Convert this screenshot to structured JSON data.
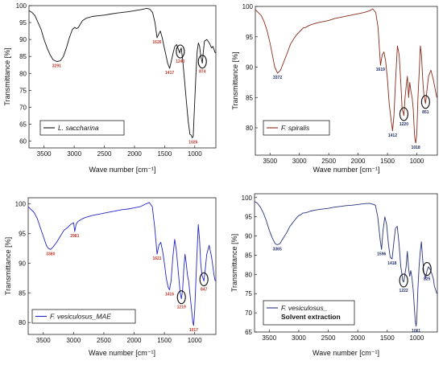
{
  "chart_data": [
    {
      "type": "line",
      "xlabel": "Wave number [cm⁻¹]",
      "ylabel": "Transmittance [%]",
      "xlim": [
        3750,
        650
      ],
      "ylim": [
        58,
        100
      ],
      "x_ticks": [
        "3500",
        "3000",
        "2500",
        "2000",
        "1500",
        "1000"
      ],
      "y_ticks": [
        "60",
        "65",
        "70",
        "75",
        "80",
        "85",
        "90",
        "95",
        "100"
      ],
      "legend": [
        "L. saccharina"
      ],
      "legend_sub": "",
      "color": "#111111",
      "annotation_color": "#c0392b",
      "series": [
        {
          "name": "L. saccharina",
          "x": [
            3750,
            3700,
            3650,
            3600,
            3550,
            3500,
            3450,
            3400,
            3350,
            3291,
            3230,
            3180,
            3130,
            3080,
            3030,
            2990,
            2960,
            2930,
            2900,
            2860,
            2800,
            2700,
            2600,
            2500,
            2400,
            2300,
            2200,
            2100,
            2000,
            1900,
            1800,
            1750,
            1700,
            1660,
            1626,
            1600,
            1570,
            1540,
            1510,
            1480,
            1450,
            1417,
            1390,
            1360,
            1330,
            1300,
            1270,
            1250,
            1240,
            1225,
            1200,
            1170,
            1140,
            1110,
            1080,
            1060,
            1040,
            1026,
            1000,
            980,
            960,
            940,
            920,
            900,
            874,
            860,
            840,
            800,
            760,
            720,
            700,
            680,
            660
          ],
          "y": [
            98.5,
            98,
            97,
            95,
            93,
            90,
            87.5,
            85.5,
            84,
            83.5,
            83.7,
            85,
            87.5,
            90.5,
            93,
            93.6,
            93.2,
            93.6,
            94.5,
            95.6,
            96.3,
            96.8,
            97,
            97.2,
            97.5,
            97.8,
            98,
            98.2,
            98.5,
            98.8,
            99.2,
            99,
            98,
            95,
            90.5,
            91.5,
            92.5,
            90.5,
            88,
            85.5,
            83,
            81.5,
            83.5,
            86,
            88,
            88.5,
            87,
            86,
            86.8,
            87.5,
            84,
            78,
            72,
            66,
            62,
            61.8,
            61,
            61.5,
            72,
            80,
            86.5,
            89,
            88,
            85,
            83,
            86,
            89.5,
            90,
            89,
            87.5,
            88,
            87,
            86
          ]
        }
      ],
      "annotations": [
        {
          "label": "3291",
          "x": 3291,
          "y": 83.5,
          "circle": false
        },
        {
          "label": "1626",
          "x": 1626,
          "y": 90.5,
          "circle": false
        },
        {
          "label": "1417",
          "x": 1417,
          "y": 81.5,
          "circle": false
        },
        {
          "label": "1240",
          "x": 1240,
          "y": 86.0,
          "circle": true
        },
        {
          "label": "874",
          "x": 874,
          "y": 83.0,
          "circle": true
        },
        {
          "label": "1026",
          "x": 1026,
          "y": 61.0,
          "circle": false
        }
      ]
    },
    {
      "type": "line",
      "xlabel": "Wave number [cm⁻¹]",
      "ylabel": "Transmittance [%]",
      "xlim": [
        3750,
        650
      ],
      "ylim": [
        75.5,
        100
      ],
      "x_ticks": [
        "3500",
        "3000",
        "2500",
        "2000",
        "1500",
        "1000"
      ],
      "y_ticks": [
        "75",
        "80",
        "85",
        "90",
        "95",
        "100"
      ],
      "legend": [
        "F. spiralis"
      ],
      "legend_sub": "",
      "color": "#8b2a1a",
      "annotation_color": "#1f2d6b",
      "series": [
        {
          "name": "F. spiralis",
          "x": [
            3750,
            3700,
            3650,
            3600,
            3550,
            3500,
            3450,
            3420,
            3372,
            3320,
            3260,
            3200,
            3150,
            3100,
            3050,
            3000,
            2960,
            2930,
            2900,
            2850,
            2800,
            2700,
            2600,
            2500,
            2400,
            2300,
            2200,
            2100,
            2000,
            1900,
            1800,
            1750,
            1700,
            1660,
            1619,
            1590,
            1560,
            1530,
            1500,
            1470,
            1440,
            1412,
            1390,
            1360,
            1330,
            1300,
            1270,
            1250,
            1230,
            1220,
            1200,
            1180,
            1160,
            1140,
            1120,
            1100,
            1080,
            1060,
            1040,
            1030,
            1018,
            1000,
            980,
            960,
            940,
            920,
            900,
            880,
            851,
            830,
            800,
            760,
            720,
            700,
            680,
            660
          ],
          "y": [
            99.5,
            99,
            98.5,
            97.5,
            96,
            94,
            91.5,
            90,
            89,
            89.5,
            91,
            92.5,
            93.8,
            94.6,
            95.3,
            95.8,
            96.2,
            96.5,
            96.5,
            96.8,
            97,
            97.3,
            97.5,
            97.7,
            98,
            98.2,
            98.4,
            98.6,
            98.8,
            99,
            99.3,
            99.6,
            99,
            96.5,
            90.3,
            92,
            92.5,
            91,
            88,
            84,
            81.5,
            79.5,
            82,
            88,
            93.5,
            92,
            87,
            83,
            82.5,
            82,
            85,
            87,
            88.5,
            85,
            87.5,
            86,
            85,
            83,
            79,
            78,
            77.5,
            79,
            85,
            89,
            93.5,
            92,
            88,
            85.5,
            84,
            86,
            88.5,
            89.5,
            88,
            87,
            86,
            85
          ]
        }
      ],
      "annotations": [
        {
          "label": "3372",
          "x": 3372,
          "y": 89.0,
          "circle": false
        },
        {
          "label": "1619",
          "x": 1619,
          "y": 90.3,
          "circle": false
        },
        {
          "label": "1412",
          "x": 1412,
          "y": 79.5,
          "circle": false
        },
        {
          "label": "1220",
          "x": 1220,
          "y": 82.0,
          "circle": true
        },
        {
          "label": "1018",
          "x": 1018,
          "y": 77.5,
          "circle": false
        },
        {
          "label": "851",
          "x": 851,
          "y": 84.0,
          "circle": true
        }
      ]
    },
    {
      "type": "line",
      "xlabel": "Wave number [cm⁻¹]",
      "ylabel": "Transmittance [%]",
      "xlim": [
        3750,
        650
      ],
      "ylim": [
        78,
        101
      ],
      "x_ticks": [
        "3500",
        "3000",
        "2500",
        "2000",
        "1500",
        "1000"
      ],
      "y_ticks": [
        "80",
        "85",
        "90",
        "95",
        "100"
      ],
      "legend": [
        "F. vesiculosus_MAE"
      ],
      "legend_sub": "",
      "color": "#2326c6",
      "annotation_color": "#c0392b",
      "series": [
        {
          "name": "F. vesiculosus_MAE",
          "x": [
            3750,
            3700,
            3650,
            3600,
            3550,
            3500,
            3450,
            3420,
            3380,
            3340,
            3280,
            3220,
            3160,
            3100,
            3050,
            3000,
            2981,
            2960,
            2930,
            2900,
            2850,
            2800,
            2700,
            2600,
            2500,
            2400,
            2300,
            2200,
            2100,
            2000,
            1900,
            1800,
            1750,
            1700,
            1660,
            1621,
            1590,
            1560,
            1530,
            1500,
            1470,
            1440,
            1416,
            1390,
            1360,
            1330,
            1300,
            1270,
            1240,
            1219,
            1200,
            1180,
            1160,
            1140,
            1120,
            1100,
            1080,
            1060,
            1040,
            1030,
            1017,
            1000,
            980,
            960,
            940,
            920,
            900,
            880,
            847,
            830,
            800,
            760,
            720,
            700,
            680,
            660
          ],
          "y": [
            99.5,
            99,
            98.5,
            97.5,
            96,
            94.5,
            93,
            92.5,
            92.3,
            92.7,
            93.5,
            94.5,
            95.5,
            96,
            96.5,
            96.8,
            95.3,
            96.5,
            97,
            97.2,
            97.5,
            97.7,
            98,
            98.2,
            98.4,
            98.6,
            98.8,
            99,
            99.1,
            99.3,
            99.5,
            100,
            100.2,
            99.5,
            96,
            91.5,
            93,
            93.5,
            92,
            90,
            87.5,
            86,
            85.5,
            87,
            91,
            94,
            92,
            88.5,
            85,
            84,
            85.5,
            89,
            91.5,
            90,
            88,
            87,
            85,
            83,
            81,
            80,
            79.5,
            82,
            87,
            92,
            96.5,
            94,
            90,
            88,
            87,
            88.5,
            91.5,
            93,
            91,
            89.5,
            88,
            87
          ]
        }
      ],
      "annotations": [
        {
          "label": "3380",
          "x": 3380,
          "y": 92.3,
          "circle": false
        },
        {
          "label": "2981",
          "x": 2981,
          "y": 95.3,
          "circle": false
        },
        {
          "label": "1621",
          "x": 1621,
          "y": 91.5,
          "circle": false
        },
        {
          "label": "1416",
          "x": 1416,
          "y": 85.5,
          "circle": false
        },
        {
          "label": "1219",
          "x": 1219,
          "y": 84.0,
          "circle": true
        },
        {
          "label": "1017",
          "x": 1017,
          "y": 79.5,
          "circle": false
        },
        {
          "label": "847",
          "x": 847,
          "y": 87.0,
          "circle": true
        }
      ]
    },
    {
      "type": "line",
      "xlabel": "Wave number [cm⁻¹]",
      "ylabel": "Transmittance [%]",
      "xlim": [
        3750,
        650
      ],
      "ylim": [
        65,
        101
      ],
      "x_ticks": [
        "3500",
        "3000",
        "2500",
        "2000",
        "1500",
        "1000"
      ],
      "y_ticks": [
        "65",
        "70",
        "75",
        "80",
        "85",
        "90",
        "95",
        "100"
      ],
      "legend": [
        "F. vesiculosus_"
      ],
      "legend_sub": "Solvent extraction",
      "color": "#28337d",
      "annotation_color": "#1f2d6b",
      "series": [
        {
          "name": "F. vesiculosus_",
          "x": [
            3750,
            3700,
            3650,
            3600,
            3550,
            3500,
            3450,
            3400,
            3365,
            3320,
            3260,
            3200,
            3150,
            3100,
            3050,
            3000,
            2960,
            2930,
            2900,
            2850,
            2800,
            2700,
            2600,
            2500,
            2400,
            2300,
            2200,
            2100,
            2000,
            1900,
            1800,
            1750,
            1700,
            1660,
            1620,
            1596,
            1570,
            1540,
            1510,
            1480,
            1450,
            1418,
            1390,
            1360,
            1330,
            1300,
            1270,
            1250,
            1240,
            1222,
            1200,
            1180,
            1160,
            1140,
            1120,
            1100,
            1080,
            1060,
            1040,
            1025,
            1011,
            1000,
            980,
            960,
            940,
            920,
            900,
            880,
            850,
            825,
            800,
            760,
            720,
            700,
            680,
            660
          ],
          "y": [
            99,
            98.5,
            97.5,
            96,
            94,
            91.5,
            89.5,
            88,
            87.7,
            88,
            89.5,
            91,
            92.5,
            93.5,
            94.5,
            95.3,
            95.6,
            96,
            96,
            96.2,
            96.5,
            96.8,
            97,
            97.2,
            97.5,
            97.7,
            97.9,
            98,
            98.2,
            98.4,
            98.5,
            98.3,
            98,
            95,
            89,
            86.5,
            91.5,
            95,
            93,
            88,
            84.5,
            84,
            88,
            92,
            92.5,
            88,
            82,
            80,
            78.5,
            78,
            80,
            82,
            86,
            82,
            79.5,
            81,
            79,
            76,
            71.5,
            68,
            66.5,
            68,
            76,
            82,
            86,
            88.5,
            84,
            80.5,
            79,
            81,
            82,
            81,
            79,
            77,
            76,
            75
          ]
        }
      ],
      "annotations": [
        {
          "label": "3365",
          "x": 3365,
          "y": 87.7,
          "circle": false
        },
        {
          "label": "1596",
          "x": 1596,
          "y": 86.5,
          "circle": false
        },
        {
          "label": "1418",
          "x": 1418,
          "y": 84.0,
          "circle": false
        },
        {
          "label": "1222",
          "x": 1222,
          "y": 78.0,
          "circle": true
        },
        {
          "label": "1011",
          "x": 1011,
          "y": 66.5,
          "circle": false
        },
        {
          "label": "825",
          "x": 825,
          "y": 81.0,
          "circle": true
        }
      ]
    }
  ]
}
